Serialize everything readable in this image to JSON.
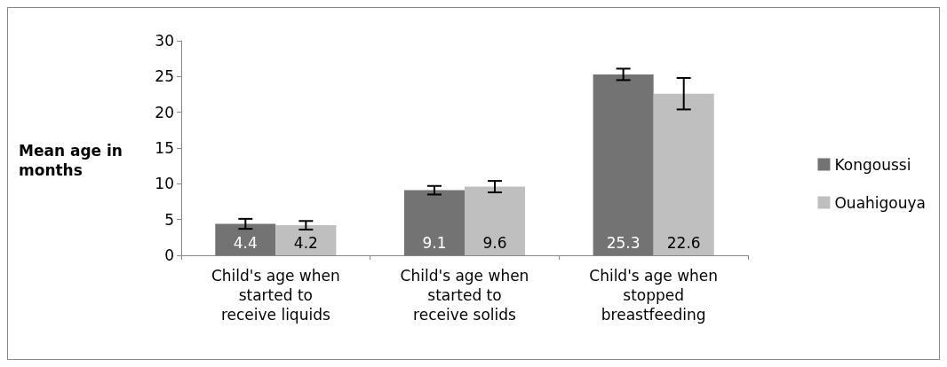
{
  "chart_data": {
    "type": "bar",
    "ylabel": "Mean age in months",
    "categories": [
      "Child's age when started to receive liquids",
      "Child's age when started to receive solids",
      "Child's age when stopped breastfeeding"
    ],
    "series": [
      {
        "name": "Kongoussi",
        "color": "#737373",
        "values": [
          4.4,
          9.1,
          25.3
        ],
        "errors": [
          0.7,
          0.6,
          0.8
        ]
      },
      {
        "name": "Ouahigouya",
        "color": "#bfbfbf",
        "values": [
          4.2,
          9.6,
          22.6
        ],
        "errors": [
          0.6,
          0.8,
          2.2
        ]
      }
    ],
    "ylim": [
      0,
      30
    ],
    "yticks": [
      0,
      5,
      10,
      15,
      20,
      25,
      30
    ],
    "data_labels": true,
    "grid": false,
    "legend": "right"
  }
}
